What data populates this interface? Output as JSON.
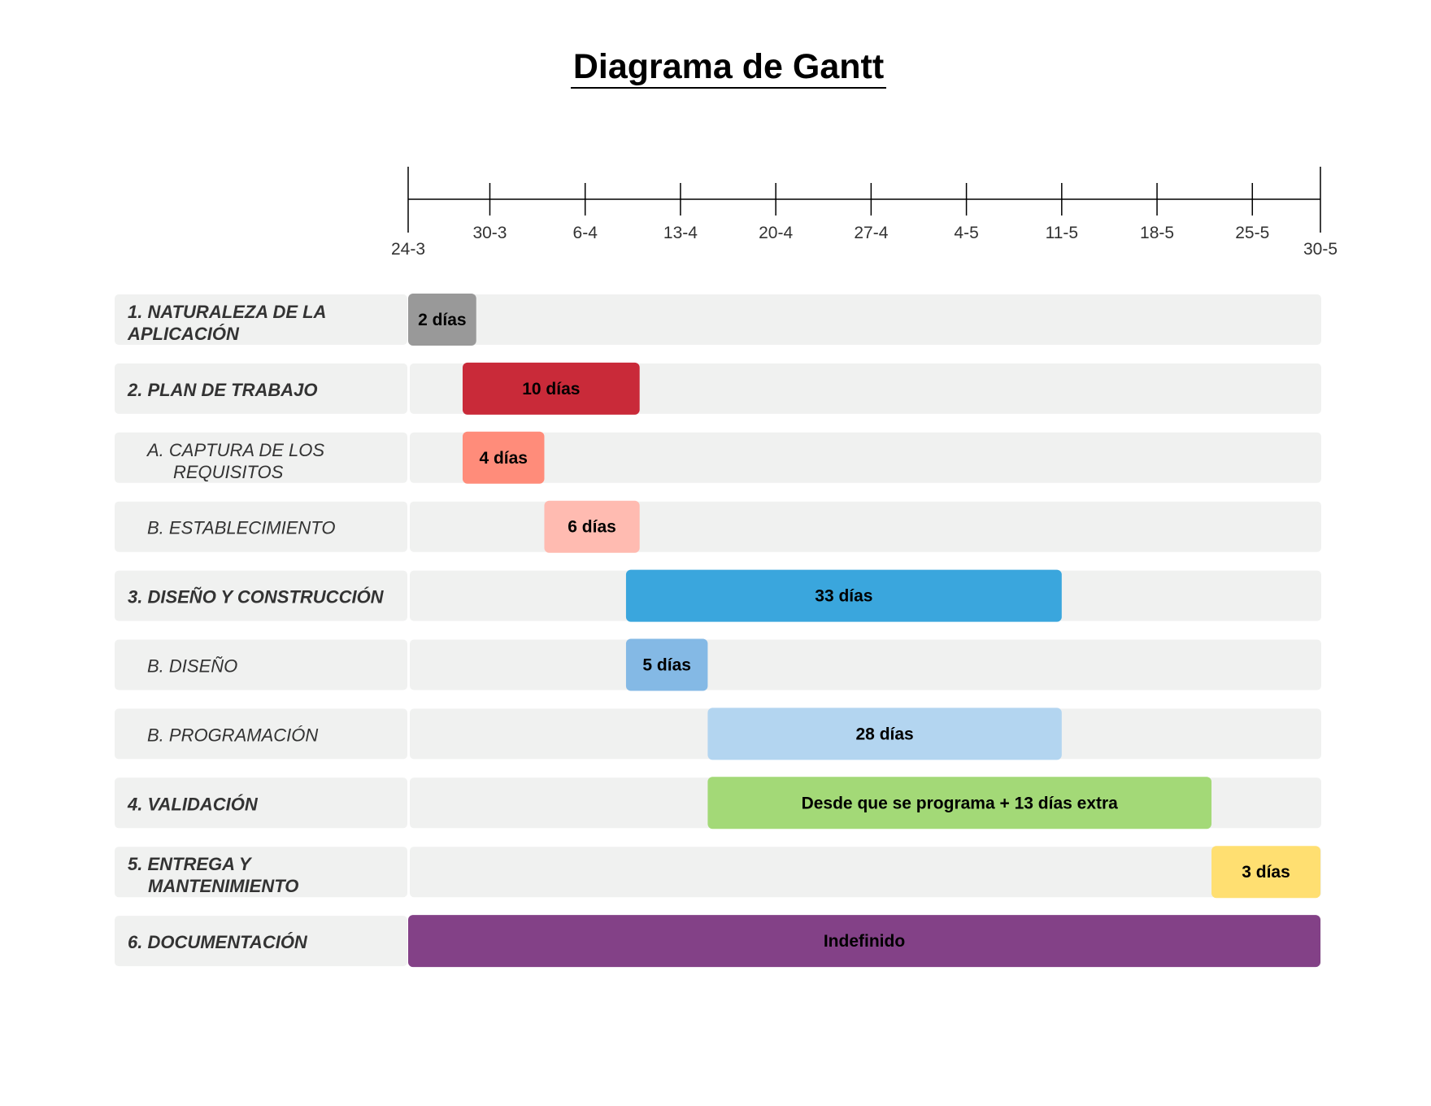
{
  "chart_data": {
    "type": "gantt",
    "title": "Diagrama de Gantt",
    "axis": {
      "start": "2023-03-24",
      "end": "2023-05-30",
      "ticks": [
        {
          "date": "2023-03-24",
          "label": "24-3",
          "major": true
        },
        {
          "date": "2023-03-30",
          "label": "30-3",
          "major": false
        },
        {
          "date": "2023-04-06",
          "label": "6-4",
          "major": false
        },
        {
          "date": "2023-04-13",
          "label": "13-4",
          "major": false
        },
        {
          "date": "2023-04-20",
          "label": "20-4",
          "major": false
        },
        {
          "date": "2023-04-27",
          "label": "27-4",
          "major": false
        },
        {
          "date": "2023-05-04",
          "label": "4-5",
          "major": false
        },
        {
          "date": "2023-05-11",
          "label": "11-5",
          "major": false
        },
        {
          "date": "2023-05-18",
          "label": "18-5",
          "major": false
        },
        {
          "date": "2023-05-25",
          "label": "25-5",
          "major": false
        },
        {
          "date": "2023-05-30",
          "label": "30-5",
          "major": true
        }
      ]
    },
    "tasks": [
      {
        "label_lines": [
          "1. NATURALEZA DE LA",
          "APLICACIÓN"
        ],
        "level": 0,
        "start": "2023-03-24",
        "end": "2023-03-29",
        "bar_label": "2 días",
        "color": "#999999"
      },
      {
        "label_lines": [
          "2. PLAN DE TRABAJO"
        ],
        "level": 0,
        "start": "2023-03-28",
        "end": "2023-04-10",
        "bar_label": "10 días",
        "color": "#c92a39"
      },
      {
        "label_lines": [
          "A. CAPTURA DE LOS",
          "REQUISITOS"
        ],
        "level": 1,
        "start": "2023-03-28",
        "end": "2023-04-03",
        "bar_label": "4 días",
        "color": "#ff8c7a"
      },
      {
        "label_lines": [
          "B. ESTABLECIMIENTO"
        ],
        "level": 1,
        "start": "2023-04-03",
        "end": "2023-04-10",
        "bar_label": "6 días",
        "color": "#ffbbb1"
      },
      {
        "label_lines": [
          "3. DISEÑO Y CONSTRUCCIÓN"
        ],
        "level": 0,
        "start": "2023-04-09",
        "end": "2023-05-11",
        "bar_label": "33 días",
        "color": "#3aa6dd"
      },
      {
        "label_lines": [
          "B. DISEÑO"
        ],
        "level": 1,
        "start": "2023-04-09",
        "end": "2023-04-15",
        "bar_label": "5 días",
        "color": "#84b9e5"
      },
      {
        "label_lines": [
          "B. PROGRAMACIÓN"
        ],
        "level": 1,
        "start": "2023-04-15",
        "end": "2023-05-11",
        "bar_label": "28 días",
        "color": "#b3d5f0"
      },
      {
        "label_lines": [
          "4. VALIDACIÓN"
        ],
        "level": 0,
        "start": "2023-04-15",
        "end": "2023-05-22",
        "bar_label": "Desde que se programa + 13 días extra",
        "color": "#a3d977"
      },
      {
        "label_lines": [
          "5. ENTREGA Y",
          "MANTENIMIENTO"
        ],
        "level": 0,
        "start": "2023-05-22",
        "end": "2023-05-30",
        "bar_label": "3 días",
        "color": "#ffdf71"
      },
      {
        "label_lines": [
          "6. DOCUMENTACIÓN"
        ],
        "level": 0,
        "start": "2023-03-24",
        "end": "2023-05-30",
        "bar_label": "Indefinido",
        "color": "#834187"
      }
    ],
    "colors": {
      "track": "#f0f1f0",
      "axis": "#000000"
    }
  }
}
